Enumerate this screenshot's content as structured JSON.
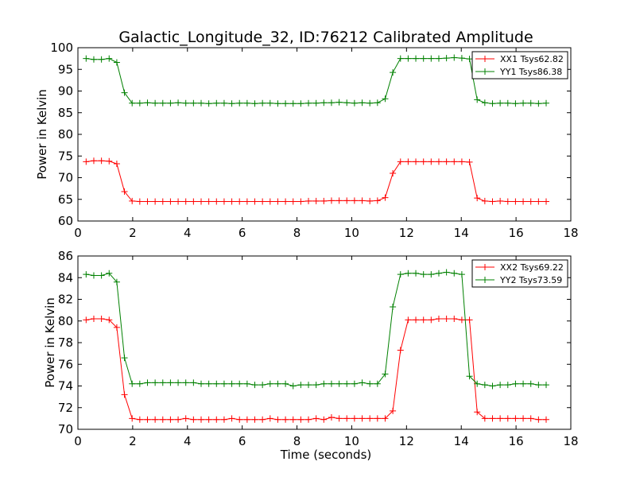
{
  "figure": {
    "title": "Galactic_Longitude_32, ID:76212 Calibrated Amplitude",
    "xlabel": "Time (seconds)"
  },
  "chart_data": [
    {
      "type": "line",
      "ylabel": "Power in Kelvin",
      "xlabel": "",
      "xlim": [
        0,
        18
      ],
      "ylim": [
        60,
        100
      ],
      "xticks": [
        0,
        2,
        4,
        6,
        8,
        10,
        12,
        14,
        16,
        18
      ],
      "yticks": [
        60,
        65,
        70,
        75,
        80,
        85,
        90,
        95,
        100
      ],
      "grid": false,
      "legend_position": "top-right",
      "x": [
        0.3,
        0.58,
        0.86,
        1.14,
        1.42,
        1.7,
        1.98,
        2.26,
        2.54,
        2.82,
        3.1,
        3.38,
        3.66,
        3.94,
        4.22,
        4.5,
        4.78,
        5.06,
        5.34,
        5.62,
        5.9,
        6.18,
        6.46,
        6.74,
        7.02,
        7.3,
        7.58,
        7.86,
        8.14,
        8.42,
        8.7,
        8.98,
        9.26,
        9.54,
        9.82,
        10.1,
        10.38,
        10.66,
        10.94,
        11.22,
        11.5,
        11.78,
        12.06,
        12.34,
        12.62,
        12.9,
        13.18,
        13.46,
        13.74,
        14.02,
        14.3,
        14.58,
        14.86,
        15.14,
        15.42,
        15.7,
        15.98,
        16.26,
        16.54,
        16.82,
        17.1
      ],
      "series": [
        {
          "name": "XX1",
          "legend_label": "XX1 Tsys62.82",
          "color": "#ff0000",
          "values": [
            73.7,
            73.9,
            73.9,
            73.8,
            73.2,
            66.8,
            64.6,
            64.5,
            64.5,
            64.5,
            64.5,
            64.5,
            64.5,
            64.5,
            64.5,
            64.5,
            64.5,
            64.5,
            64.5,
            64.5,
            64.5,
            64.5,
            64.5,
            64.5,
            64.5,
            64.5,
            64.5,
            64.5,
            64.5,
            64.6,
            64.6,
            64.6,
            64.7,
            64.7,
            64.7,
            64.7,
            64.7,
            64.6,
            64.7,
            65.4,
            71.0,
            73.7,
            73.7,
            73.7,
            73.7,
            73.7,
            73.7,
            73.7,
            73.7,
            73.7,
            73.6,
            65.3,
            64.6,
            64.5,
            64.6,
            64.5,
            64.5,
            64.5,
            64.5,
            64.5,
            64.5
          ]
        },
        {
          "name": "YY1",
          "legend_label": "YY1 Tsys86.38",
          "color": "#008000",
          "values": [
            97.5,
            97.3,
            97.3,
            97.5,
            96.6,
            89.6,
            87.2,
            87.2,
            87.3,
            87.2,
            87.2,
            87.2,
            87.3,
            87.2,
            87.2,
            87.2,
            87.1,
            87.2,
            87.2,
            87.1,
            87.2,
            87.2,
            87.1,
            87.2,
            87.2,
            87.1,
            87.1,
            87.1,
            87.1,
            87.2,
            87.2,
            87.3,
            87.3,
            87.4,
            87.3,
            87.2,
            87.3,
            87.2,
            87.3,
            88.2,
            94.3,
            97.5,
            97.5,
            97.5,
            97.5,
            97.5,
            97.5,
            97.6,
            97.7,
            97.6,
            97.4,
            88.0,
            87.3,
            87.1,
            87.2,
            87.2,
            87.1,
            87.2,
            87.2,
            87.1,
            87.2
          ]
        }
      ]
    },
    {
      "type": "line",
      "ylabel": "Power in Kelvin",
      "xlabel": "Time (seconds)",
      "xlim": [
        0,
        18
      ],
      "ylim": [
        70,
        86
      ],
      "xticks": [
        0,
        2,
        4,
        6,
        8,
        10,
        12,
        14,
        16,
        18
      ],
      "yticks": [
        70,
        72,
        74,
        76,
        78,
        80,
        82,
        84,
        86
      ],
      "grid": false,
      "legend_position": "top-right",
      "x": [
        0.3,
        0.58,
        0.86,
        1.14,
        1.42,
        1.7,
        1.98,
        2.26,
        2.54,
        2.82,
        3.1,
        3.38,
        3.66,
        3.94,
        4.22,
        4.5,
        4.78,
        5.06,
        5.34,
        5.62,
        5.9,
        6.18,
        6.46,
        6.74,
        7.02,
        7.3,
        7.58,
        7.86,
        8.14,
        8.42,
        8.7,
        8.98,
        9.26,
        9.54,
        9.82,
        10.1,
        10.38,
        10.66,
        10.94,
        11.22,
        11.5,
        11.78,
        12.06,
        12.34,
        12.62,
        12.9,
        13.18,
        13.46,
        13.74,
        14.02,
        14.3,
        14.58,
        14.86,
        15.14,
        15.42,
        15.7,
        15.98,
        16.26,
        16.54,
        16.82,
        17.1
      ],
      "series": [
        {
          "name": "XX2",
          "legend_label": "XX2 Tsys69.22",
          "color": "#ff0000",
          "values": [
            80.1,
            80.2,
            80.2,
            80.1,
            79.4,
            73.2,
            71.0,
            70.9,
            70.9,
            70.9,
            70.9,
            70.9,
            70.9,
            71.0,
            70.9,
            70.9,
            70.9,
            70.9,
            70.9,
            71.0,
            70.9,
            70.9,
            70.9,
            70.9,
            71.0,
            70.9,
            70.9,
            70.9,
            70.9,
            70.9,
            71.0,
            70.9,
            71.1,
            71.0,
            71.0,
            71.0,
            71.0,
            71.0,
            71.0,
            71.0,
            71.7,
            77.3,
            80.1,
            80.1,
            80.1,
            80.1,
            80.2,
            80.2,
            80.2,
            80.1,
            80.1,
            71.6,
            71.0,
            71.0,
            71.0,
            71.0,
            71.0,
            71.0,
            71.0,
            70.9,
            70.9
          ]
        },
        {
          "name": "YY2",
          "legend_label": "YY2 Tsys73.59",
          "color": "#008000",
          "values": [
            84.3,
            84.2,
            84.2,
            84.4,
            83.6,
            76.6,
            74.2,
            74.2,
            74.3,
            74.3,
            74.3,
            74.3,
            74.3,
            74.3,
            74.3,
            74.2,
            74.2,
            74.2,
            74.2,
            74.2,
            74.2,
            74.2,
            74.1,
            74.1,
            74.2,
            74.2,
            74.2,
            74.0,
            74.1,
            74.1,
            74.1,
            74.2,
            74.2,
            74.2,
            74.2,
            74.2,
            74.3,
            74.2,
            74.2,
            75.1,
            81.3,
            84.3,
            84.4,
            84.4,
            84.3,
            84.3,
            84.4,
            84.5,
            84.4,
            84.3,
            74.9,
            74.2,
            74.1,
            74.0,
            74.1,
            74.1,
            74.2,
            74.2,
            74.2,
            74.1,
            74.1
          ]
        }
      ]
    }
  ]
}
